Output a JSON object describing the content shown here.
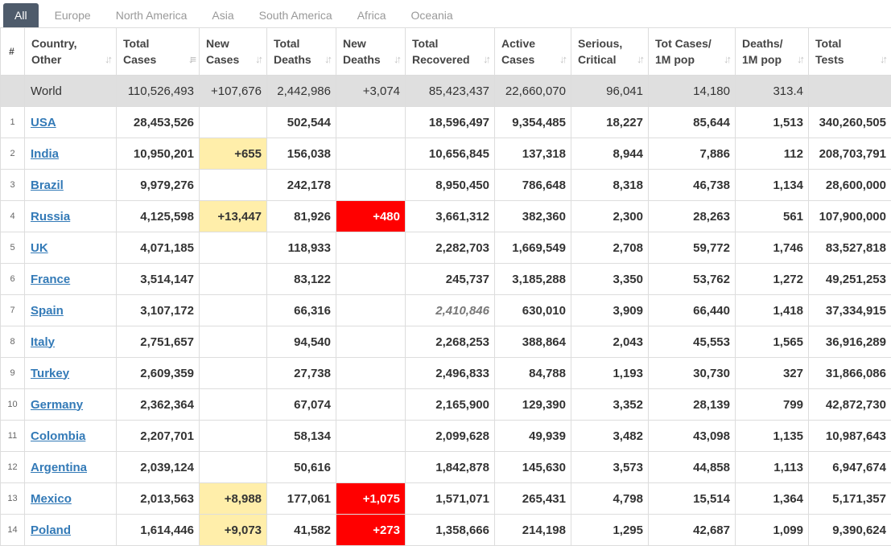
{
  "tabs": [
    "All",
    "Europe",
    "North America",
    "Asia",
    "South America",
    "Africa",
    "Oceania"
  ],
  "headers": {
    "num": "#",
    "country": [
      "Country,",
      "Other"
    ],
    "total_cases": [
      "Total",
      "Cases"
    ],
    "new_cases": [
      "New",
      "Cases"
    ],
    "total_deaths": [
      "Total",
      "Deaths"
    ],
    "new_deaths": [
      "New",
      "Deaths"
    ],
    "total_recovered": [
      "Total",
      "Recovered"
    ],
    "active_cases": [
      "Active",
      "Cases"
    ],
    "serious": [
      "Serious,",
      "Critical"
    ],
    "cases_per_m": [
      "Tot Cases/",
      "1M pop"
    ],
    "deaths_per_m": [
      "Deaths/",
      "1M pop"
    ],
    "total_tests": [
      "Total",
      "Tests"
    ]
  },
  "world": {
    "name": "World",
    "total_cases": "110,526,493",
    "new_cases": "+107,676",
    "total_deaths": "2,442,986",
    "new_deaths": "+3,074",
    "total_recovered": "85,423,437",
    "active_cases": "22,660,070",
    "serious": "96,041",
    "cases_per_m": "14,180",
    "deaths_per_m": "313.4",
    "total_tests": ""
  },
  "rows": [
    {
      "n": "1",
      "name": "USA",
      "total_cases": "28,453,526",
      "new_cases": "",
      "total_deaths": "502,544",
      "new_deaths": "",
      "total_recovered": "18,596,497",
      "active_cases": "9,354,485",
      "serious": "18,227",
      "cases_per_m": "85,644",
      "deaths_per_m": "1,513",
      "total_tests": "340,260,505"
    },
    {
      "n": "2",
      "name": "India",
      "total_cases": "10,950,201",
      "new_cases": "+655",
      "total_deaths": "156,038",
      "new_deaths": "",
      "total_recovered": "10,656,845",
      "active_cases": "137,318",
      "serious": "8,944",
      "cases_per_m": "7,886",
      "deaths_per_m": "112",
      "total_tests": "208,703,791"
    },
    {
      "n": "3",
      "name": "Brazil",
      "total_cases": "9,979,276",
      "new_cases": "",
      "total_deaths": "242,178",
      "new_deaths": "",
      "total_recovered": "8,950,450",
      "active_cases": "786,648",
      "serious": "8,318",
      "cases_per_m": "46,738",
      "deaths_per_m": "1,134",
      "total_tests": "28,600,000"
    },
    {
      "n": "4",
      "name": "Russia",
      "total_cases": "4,125,598",
      "new_cases": "+13,447",
      "total_deaths": "81,926",
      "new_deaths": "+480",
      "total_recovered": "3,661,312",
      "active_cases": "382,360",
      "serious": "2,300",
      "cases_per_m": "28,263",
      "deaths_per_m": "561",
      "total_tests": "107,900,000"
    },
    {
      "n": "5",
      "name": "UK",
      "total_cases": "4,071,185",
      "new_cases": "",
      "total_deaths": "118,933",
      "new_deaths": "",
      "total_recovered": "2,282,703",
      "active_cases": "1,669,549",
      "serious": "2,708",
      "cases_per_m": "59,772",
      "deaths_per_m": "1,746",
      "total_tests": "83,527,818"
    },
    {
      "n": "6",
      "name": "France",
      "total_cases": "3,514,147",
      "new_cases": "",
      "total_deaths": "83,122",
      "new_deaths": "",
      "total_recovered": "245,737",
      "active_cases": "3,185,288",
      "serious": "3,350",
      "cases_per_m": "53,762",
      "deaths_per_m": "1,272",
      "total_tests": "49,251,253"
    },
    {
      "n": "7",
      "name": "Spain",
      "total_cases": "3,107,172",
      "new_cases": "",
      "total_deaths": "66,316",
      "new_deaths": "",
      "total_recovered": "2,410,846",
      "recovered_italic": true,
      "active_cases": "630,010",
      "serious": "3,909",
      "cases_per_m": "66,440",
      "deaths_per_m": "1,418",
      "total_tests": "37,334,915"
    },
    {
      "n": "8",
      "name": "Italy",
      "total_cases": "2,751,657",
      "new_cases": "",
      "total_deaths": "94,540",
      "new_deaths": "",
      "total_recovered": "2,268,253",
      "active_cases": "388,864",
      "serious": "2,043",
      "cases_per_m": "45,553",
      "deaths_per_m": "1,565",
      "total_tests": "36,916,289"
    },
    {
      "n": "9",
      "name": "Turkey",
      "total_cases": "2,609,359",
      "new_cases": "",
      "total_deaths": "27,738",
      "new_deaths": "",
      "total_recovered": "2,496,833",
      "active_cases": "84,788",
      "serious": "1,193",
      "cases_per_m": "30,730",
      "deaths_per_m": "327",
      "total_tests": "31,866,086"
    },
    {
      "n": "10",
      "name": "Germany",
      "total_cases": "2,362,364",
      "new_cases": "",
      "total_deaths": "67,074",
      "new_deaths": "",
      "total_recovered": "2,165,900",
      "active_cases": "129,390",
      "serious": "3,352",
      "cases_per_m": "28,139",
      "deaths_per_m": "799",
      "total_tests": "42,872,730"
    },
    {
      "n": "11",
      "name": "Colombia",
      "total_cases": "2,207,701",
      "new_cases": "",
      "total_deaths": "58,134",
      "new_deaths": "",
      "total_recovered": "2,099,628",
      "active_cases": "49,939",
      "serious": "3,482",
      "cases_per_m": "43,098",
      "deaths_per_m": "1,135",
      "total_tests": "10,987,643"
    },
    {
      "n": "12",
      "name": "Argentina",
      "total_cases": "2,039,124",
      "new_cases": "",
      "total_deaths": "50,616",
      "new_deaths": "",
      "total_recovered": "1,842,878",
      "active_cases": "145,630",
      "serious": "3,573",
      "cases_per_m": "44,858",
      "deaths_per_m": "1,113",
      "total_tests": "6,947,674"
    },
    {
      "n": "13",
      "name": "Mexico",
      "total_cases": "2,013,563",
      "new_cases": "+8,988",
      "total_deaths": "177,061",
      "new_deaths": "+1,075",
      "total_recovered": "1,571,071",
      "active_cases": "265,431",
      "serious": "4,798",
      "cases_per_m": "15,514",
      "deaths_per_m": "1,364",
      "total_tests": "5,171,357"
    },
    {
      "n": "14",
      "name": "Poland",
      "total_cases": "1,614,446",
      "new_cases": "+9,073",
      "total_deaths": "41,582",
      "new_deaths": "+273",
      "total_recovered": "1,358,666",
      "active_cases": "214,198",
      "serious": "1,295",
      "cases_per_m": "42,687",
      "deaths_per_m": "1,099",
      "total_tests": "9,390,624"
    }
  ],
  "icons": {
    "sort": "sort-arrows-icon",
    "sort_active": "sort-desc-icon"
  },
  "colors": {
    "tab_active": "#4e5b6b",
    "link": "#337ab7",
    "new_cases_bg": "#ffeeaa",
    "new_deaths_bg": "#ff0000",
    "world_bg": "#dfdfdf"
  }
}
